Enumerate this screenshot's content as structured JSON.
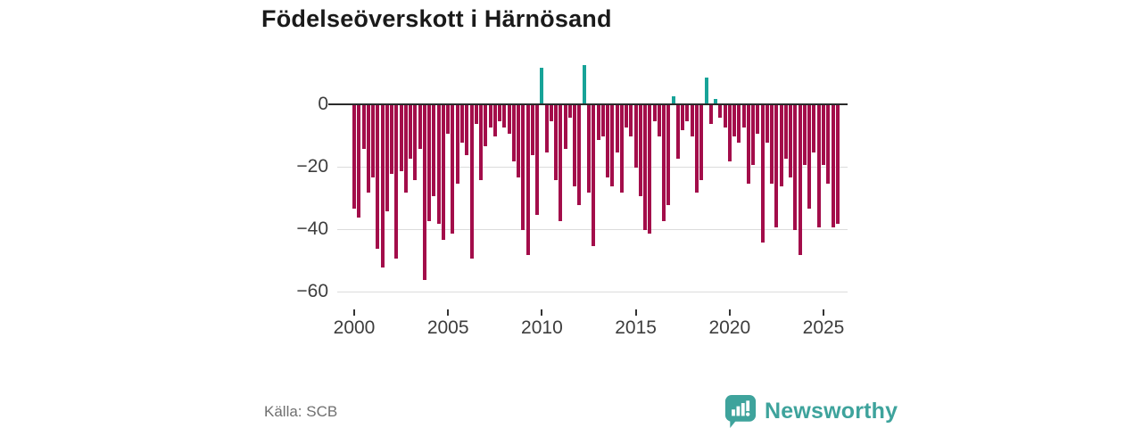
{
  "title": "Födelseöverskott i Härnösand",
  "source": "Källa: SCB",
  "brand": {
    "name": "Newsworthy"
  },
  "chart_data": {
    "type": "bar",
    "title": "Födelseöverskott i Härnösand",
    "x_start_year": 2000,
    "points_per_year": 4,
    "frequency": "quarterly",
    "x_tick_labels": [
      "2000",
      "2005",
      "2010",
      "2015",
      "2020",
      "2025"
    ],
    "y_tick_labels": [
      "0",
      "−20",
      "−40",
      "−60"
    ],
    "y_tick_values": [
      0,
      -20,
      -40,
      -60
    ],
    "ylim": [
      -62,
      15
    ],
    "grid": true,
    "legend": "none",
    "colors": {
      "negative": "#a30d4a",
      "positive": "#17a398"
    },
    "values": [
      -33,
      -36,
      -14,
      -28,
      -23,
      -46,
      -52,
      -34,
      -22,
      -49,
      -21,
      -28,
      -17,
      -24,
      -14,
      -56,
      -37,
      -29,
      -38,
      -43,
      -9,
      -41,
      -25,
      -12,
      -16,
      -49,
      -6,
      -24,
      -13,
      -7,
      -10,
      -5,
      -7,
      -9,
      -18,
      -23,
      -40,
      -48,
      -16,
      -35,
      12,
      -15,
      -5,
      -24,
      -37,
      -14,
      -4,
      -26,
      -32,
      13,
      -28,
      -45,
      -11,
      -10,
      -23,
      -26,
      -15,
      -28,
      -7,
      -10,
      -20,
      -29,
      -40,
      -41,
      -5,
      -10,
      -37,
      -32,
      3,
      -17,
      -8,
      -5,
      -10,
      -28,
      -24,
      9,
      -6,
      2,
      -4,
      -7,
      -18,
      -10,
      -12,
      -7,
      -25,
      -19,
      -9,
      -44,
      -12,
      -25,
      -39,
      -26,
      -17,
      -23,
      -40,
      -48,
      -19,
      -33,
      -15,
      -39,
      -19,
      -25,
      -39,
      -38
    ]
  }
}
